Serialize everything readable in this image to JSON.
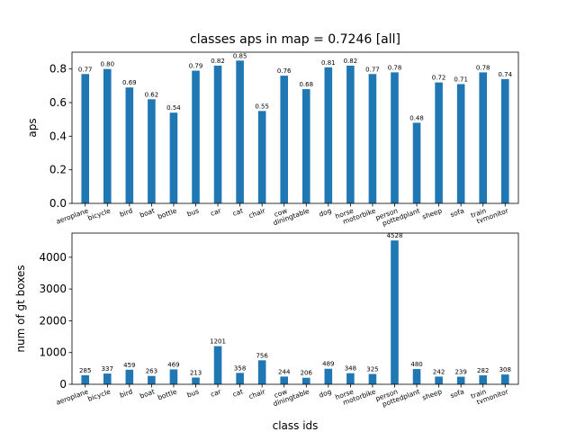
{
  "chart_data": [
    {
      "type": "bar",
      "title": "classes aps in map = 0.7246 [all]",
      "xlabel": "",
      "ylabel": "aps",
      "ylim": [
        0,
        0.9
      ],
      "yticks": [
        "0.0",
        "0.2",
        "0.4",
        "0.6",
        "0.8"
      ],
      "color": "#1f77b4",
      "categories": [
        "aeroplane",
        "bicycle",
        "bird",
        "boat",
        "bottle",
        "bus",
        "car",
        "cat",
        "chair",
        "cow",
        "diningtable",
        "dog",
        "horse",
        "motorbike",
        "person",
        "pottedplant",
        "sheep",
        "sofa",
        "train",
        "tvmonitor"
      ],
      "values": [
        0.77,
        0.8,
        0.69,
        0.62,
        0.54,
        0.79,
        0.82,
        0.85,
        0.55,
        0.76,
        0.68,
        0.81,
        0.82,
        0.77,
        0.78,
        0.48,
        0.72,
        0.71,
        0.78,
        0.74
      ],
      "data_labels": [
        "0.77",
        "0.80",
        "0.69",
        "0.62",
        "0.54",
        "0.79",
        "0.82",
        "0.85",
        "0.55",
        "0.76",
        "0.68",
        "0.81",
        "0.82",
        "0.77",
        "0.78",
        "0.48",
        "0.72",
        "0.71",
        "0.78",
        "0.74"
      ]
    },
    {
      "type": "bar",
      "title": "",
      "xlabel": "class ids",
      "ylabel": "num of gt boxes",
      "ylim": [
        0,
        4760
      ],
      "yticks": [
        "0",
        "1000",
        "2000",
        "3000",
        "4000"
      ],
      "color": "#1f77b4",
      "categories": [
        "aeroplane",
        "bicycle",
        "bird",
        "boat",
        "bottle",
        "bus",
        "car",
        "cat",
        "chair",
        "cow",
        "diningtable",
        "dog",
        "horse",
        "motorbike",
        "person",
        "pottedplant",
        "sheep",
        "sofa",
        "train",
        "tvmonitor"
      ],
      "values": [
        285,
        337,
        459,
        263,
        469,
        213,
        1201,
        358,
        756,
        244,
        206,
        489,
        348,
        325,
        4528,
        480,
        242,
        239,
        282,
        308
      ],
      "data_labels": [
        "285",
        "337",
        "459",
        "263",
        "469",
        "213",
        "1201",
        "358",
        "756",
        "244",
        "206",
        "489",
        "348",
        "325",
        "4528",
        "480",
        "242",
        "239",
        "282",
        "308"
      ]
    }
  ]
}
